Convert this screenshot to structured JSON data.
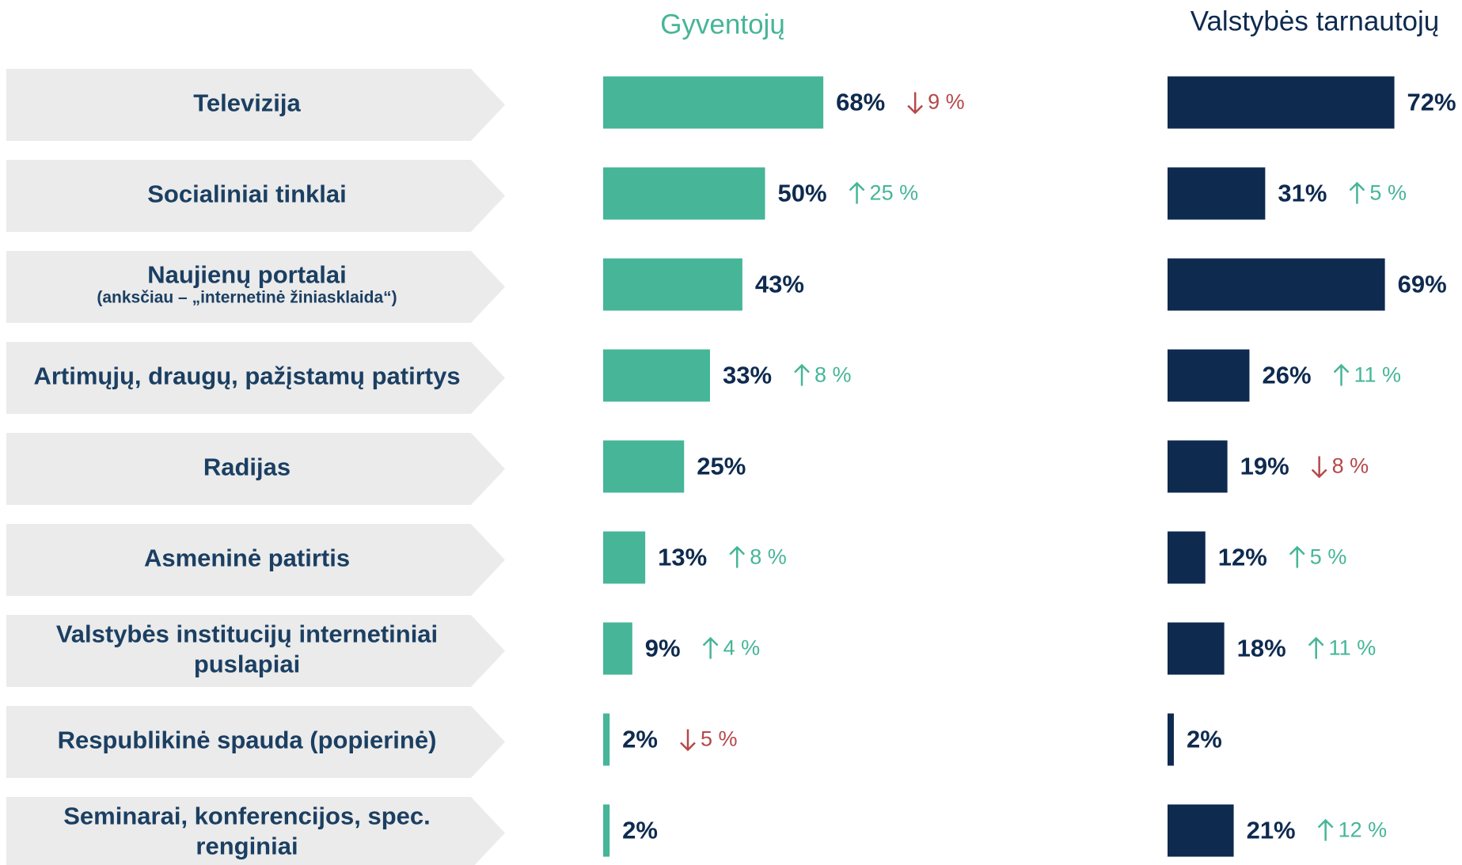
{
  "chart_data": {
    "type": "bar",
    "categories": [
      [
        "Televizija"
      ],
      [
        "Socialiniai tinklai"
      ],
      [
        "Naujienų portalai"
      ],
      [
        "Artimųjų, draugų, pažįstamų patirtys"
      ],
      [
        "Radijas"
      ],
      [
        "Asmeninė patirtis"
      ],
      [
        "Valstybės institucijų internetiniai",
        "puslapiai"
      ],
      [
        "Respublikinė spauda (popierinė)"
      ],
      [
        "Seminarai, konferencijos, spec.",
        "renginiai"
      ]
    ],
    "category_notes": [
      null,
      null,
      "(anksčiau – „internetinė žiniasklaida“)",
      null,
      null,
      null,
      null,
      null,
      null
    ],
    "series": [
      {
        "name": "Gyventojų",
        "color": "#46b598",
        "values": [
          68,
          50,
          43,
          33,
          25,
          13,
          9,
          2,
          2
        ],
        "value_labels": [
          "68%",
          "50%",
          "43%",
          "33%",
          "25%",
          "13%",
          "9%",
          "2%",
          "2%"
        ],
        "changes": [
          -9,
          25,
          null,
          8,
          null,
          8,
          4,
          -5,
          null
        ],
        "change_labels": [
          "9 %",
          "25 %",
          null,
          "8 %",
          null,
          "8 %",
          "4 %",
          "5 %",
          null
        ]
      },
      {
        "name": "Valstybės tarnautojų",
        "color": "#0e2a4f",
        "values": [
          72,
          31,
          69,
          26,
          19,
          12,
          18,
          2,
          21
        ],
        "value_labels": [
          "72%",
          "31%",
          "69%",
          "26%",
          "19%",
          "12%",
          "18%",
          "2%",
          "21%"
        ],
        "changes": [
          null,
          5,
          null,
          11,
          -8,
          5,
          11,
          null,
          12
        ],
        "change_labels": [
          null,
          "5 %",
          null,
          "11 %",
          "8 %",
          "5 %",
          "11 %",
          null,
          "12 %"
        ]
      }
    ],
    "up_color": "#46b598",
    "down_color": "#b5484a"
  }
}
